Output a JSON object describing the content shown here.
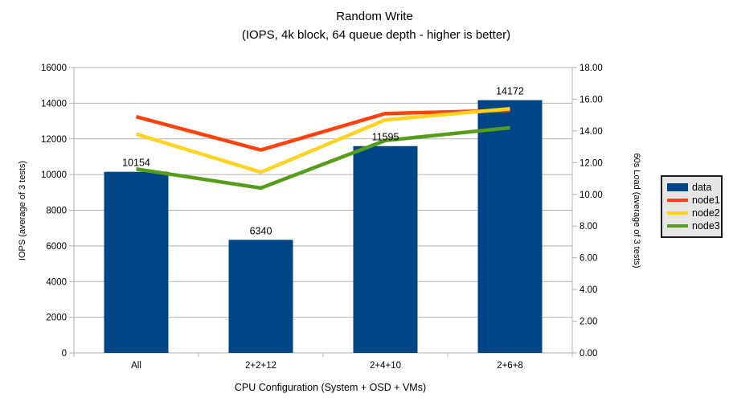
{
  "chart_data": {
    "type": "bar",
    "title": "Random Write",
    "subtitle": "(IOPS, 4k block, 64 queue depth - higher is better)",
    "xlabel": "CPU Configuration (System + OSD + VMs)",
    "ylabel_left": "IOPS (average of 3 tests)",
    "ylabel_right": "60s Load (average of 3 tests)",
    "categories": [
      "All",
      "2+2+12",
      "2+4+10",
      "2+6+8"
    ],
    "series": [
      {
        "name": "data",
        "type": "bar",
        "axis": "left",
        "color": "#004586",
        "values": [
          10154,
          6340,
          11595,
          14172
        ],
        "labels": [
          "10154",
          "6340",
          "11595",
          "14172"
        ]
      },
      {
        "name": "node1",
        "type": "line",
        "axis": "right",
        "color": "#ff420e",
        "values": [
          14.9,
          12.8,
          15.1,
          15.3
        ]
      },
      {
        "name": "node2",
        "type": "line",
        "axis": "right",
        "color": "#ffd320",
        "values": [
          13.8,
          11.4,
          14.7,
          15.4
        ]
      },
      {
        "name": "node3",
        "type": "line",
        "axis": "right",
        "color": "#579d1c",
        "values": [
          11.6,
          10.4,
          13.4,
          14.2
        ]
      }
    ],
    "left_axis": {
      "min": 0,
      "max": 16000,
      "tick_labels": [
        "0",
        "2000",
        "4000",
        "6000",
        "8000",
        "10000",
        "12000",
        "14000",
        "16000"
      ]
    },
    "right_axis": {
      "min": 0,
      "max": 18,
      "tick_labels": [
        "0.00",
        "2.00",
        "4.00",
        "6.00",
        "8.00",
        "10.00",
        "12.00",
        "14.00",
        "16.00",
        "18.00"
      ]
    },
    "legend": {
      "position": "right",
      "entries": [
        "data",
        "node1",
        "node2",
        "node3"
      ]
    },
    "grid": true,
    "colors": {
      "grid": "#b3b3b3",
      "axis": "#b3b3b3",
      "text": "#000000",
      "legend_background": "#e6e6e6",
      "legend_border": "#1a1a1a",
      "background": "#ffffff"
    }
  }
}
